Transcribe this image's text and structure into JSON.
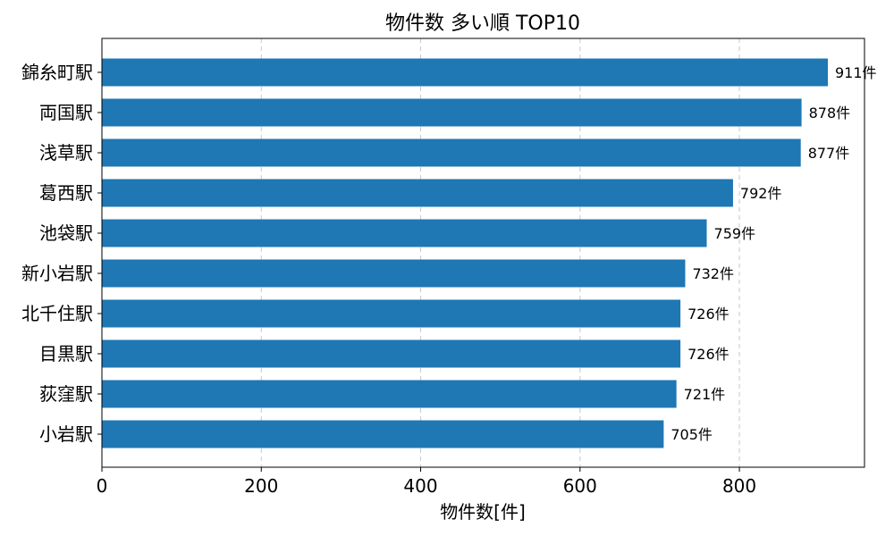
{
  "chart_data": {
    "type": "bar",
    "orientation": "horizontal",
    "title": "物件数 多い順 TOP10",
    "xlabel": "物件数[件]",
    "ylabel": "",
    "categories": [
      "錦糸町駅",
      "両国駅",
      "浅草駅",
      "葛西駅",
      "池袋駅",
      "新小岩駅",
      "北千住駅",
      "目黒駅",
      "荻窪駅",
      "小岩駅"
    ],
    "values": [
      911,
      878,
      877,
      792,
      759,
      732,
      726,
      726,
      721,
      705
    ],
    "value_suffix": "件",
    "xlim": [
      0,
      957
    ],
    "xticks": [
      0,
      200,
      400,
      600,
      800
    ],
    "grid": "x-dashed",
    "bar_color": "#1f77b4"
  }
}
